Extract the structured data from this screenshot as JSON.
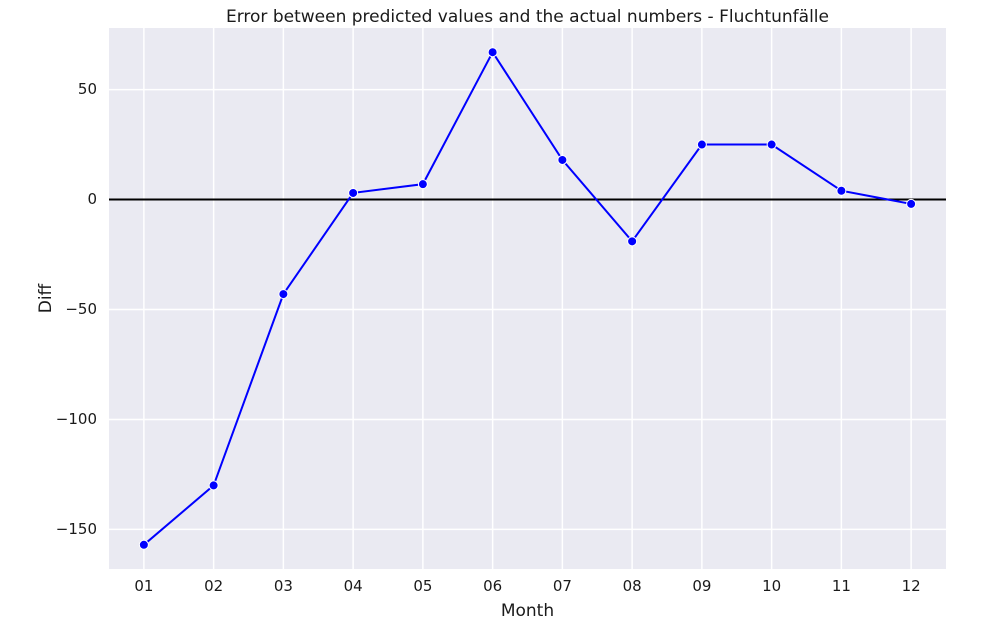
{
  "chart_data": {
    "type": "line",
    "title": "Error between predicted values and the actual numbers - Fluchtunfälle",
    "xlabel": "Month",
    "ylabel": "Diff",
    "categories": [
      "01",
      "02",
      "03",
      "04",
      "05",
      "06",
      "07",
      "08",
      "09",
      "10",
      "11",
      "12"
    ],
    "series": [
      {
        "values": [
          -157,
          -130,
          -43,
          3,
          7,
          67,
          18,
          -19,
          25,
          25,
          4,
          -2
        ],
        "color": "#0000ff",
        "marker": "circle"
      }
    ],
    "ylim": [
      -168,
      78
    ],
    "yticks": [
      50,
      0,
      -50,
      -100,
      -150
    ],
    "ytick_labels": [
      "50",
      "0",
      "−50",
      "−100",
      "−150"
    ],
    "reference_line": {
      "y": 0,
      "color": "#000000"
    },
    "grid": true,
    "background_color": "#eaeaf2"
  }
}
